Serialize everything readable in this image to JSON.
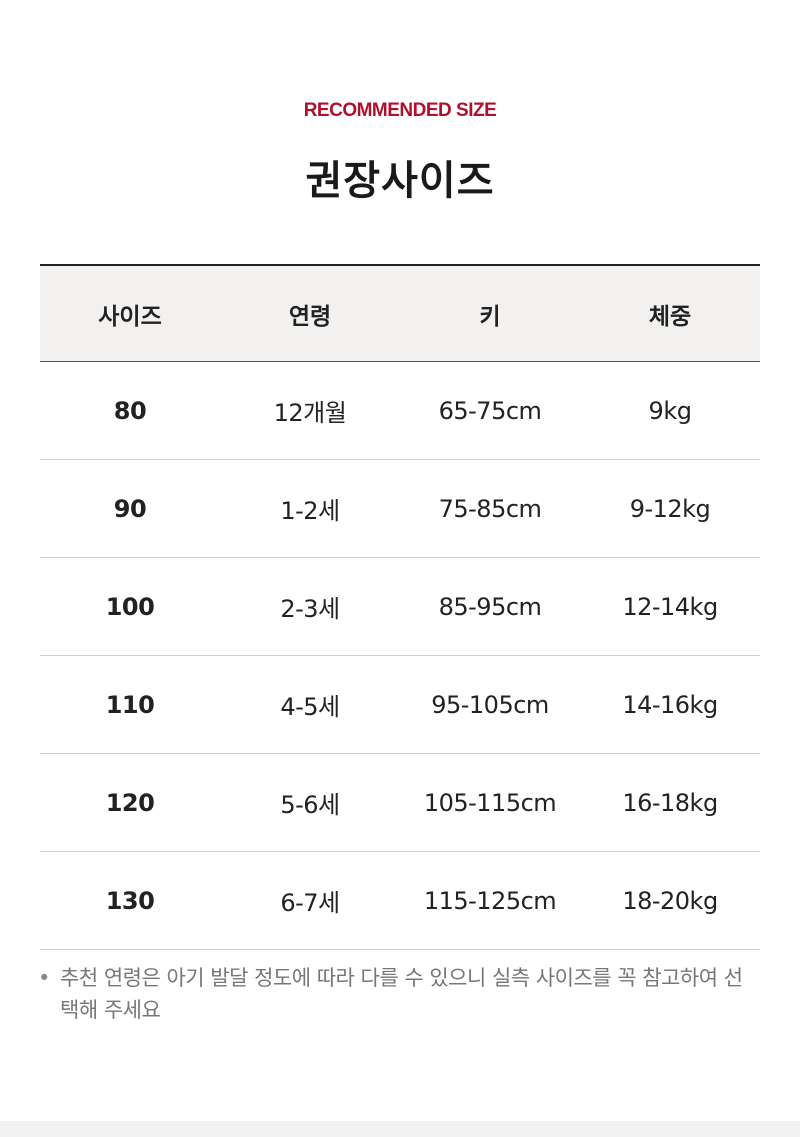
{
  "header": {
    "eyebrow": "RECOMMENDED SIZE",
    "title": "권장사이즈",
    "accent_color": "#b0102e"
  },
  "table": {
    "columns": [
      "사이즈",
      "연령",
      "키",
      "체중"
    ],
    "rows": [
      [
        "80",
        "12개월",
        "65-75cm",
        "9kg"
      ],
      [
        "90",
        "1-2세",
        "75-85cm",
        "9-12kg"
      ],
      [
        "100",
        "2-3세",
        "85-95cm",
        "12-14kg"
      ],
      [
        "110",
        "4-5세",
        "95-105cm",
        "14-16kg"
      ],
      [
        "120",
        "5-6세",
        "105-115cm",
        "16-18kg"
      ],
      [
        "130",
        "6-7세",
        "115-125cm",
        "18-20kg"
      ]
    ]
  },
  "note": {
    "bullet": "•",
    "text": "추천 연령은 아기 발달 정도에 따라 다를 수 있으니 실측 사이즈를 꼭 참고하여 선택해 주세요"
  }
}
